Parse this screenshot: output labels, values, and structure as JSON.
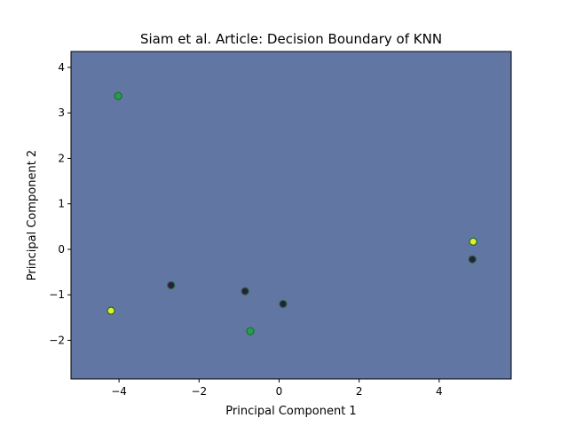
{
  "chart_data": {
    "type": "scatter",
    "title": "Siam et al. Article: Decision Boundary of KNN",
    "xlabel": "Principal Component 1",
    "ylabel": "Principal Component 2",
    "xlim": [
      -5.2,
      5.8
    ],
    "ylim": [
      -2.85,
      4.35
    ],
    "xticks": [
      -4,
      -2,
      0,
      2,
      4
    ],
    "xtick_labels": [
      "−4",
      "−2",
      "0",
      "2",
      "4"
    ],
    "yticks": [
      -2,
      -1,
      0,
      1,
      2,
      3,
      4
    ],
    "ytick_labels": [
      "−2",
      "−1",
      "0",
      "1",
      "2",
      "3",
      "4"
    ],
    "background_region_color": "#6276a4",
    "edge_color": "#1f6e2a",
    "class_colors": [
      "#2d1a4a",
      "#22a050",
      "#e3ed2c"
    ],
    "grid": false,
    "points": [
      {
        "x": -4.02,
        "y": 3.37,
        "class": 1
      },
      {
        "x": -4.2,
        "y": -1.35,
        "class": 2
      },
      {
        "x": -2.7,
        "y": -0.79,
        "class": 0
      },
      {
        "x": -0.85,
        "y": -0.92,
        "class": 0
      },
      {
        "x": -0.72,
        "y": -1.8,
        "class": 1
      },
      {
        "x": 0.1,
        "y": -1.2,
        "class": 0
      },
      {
        "x": 4.85,
        "y": 0.17,
        "class": 2
      },
      {
        "x": 4.83,
        "y": -0.22,
        "class": 0
      }
    ]
  }
}
